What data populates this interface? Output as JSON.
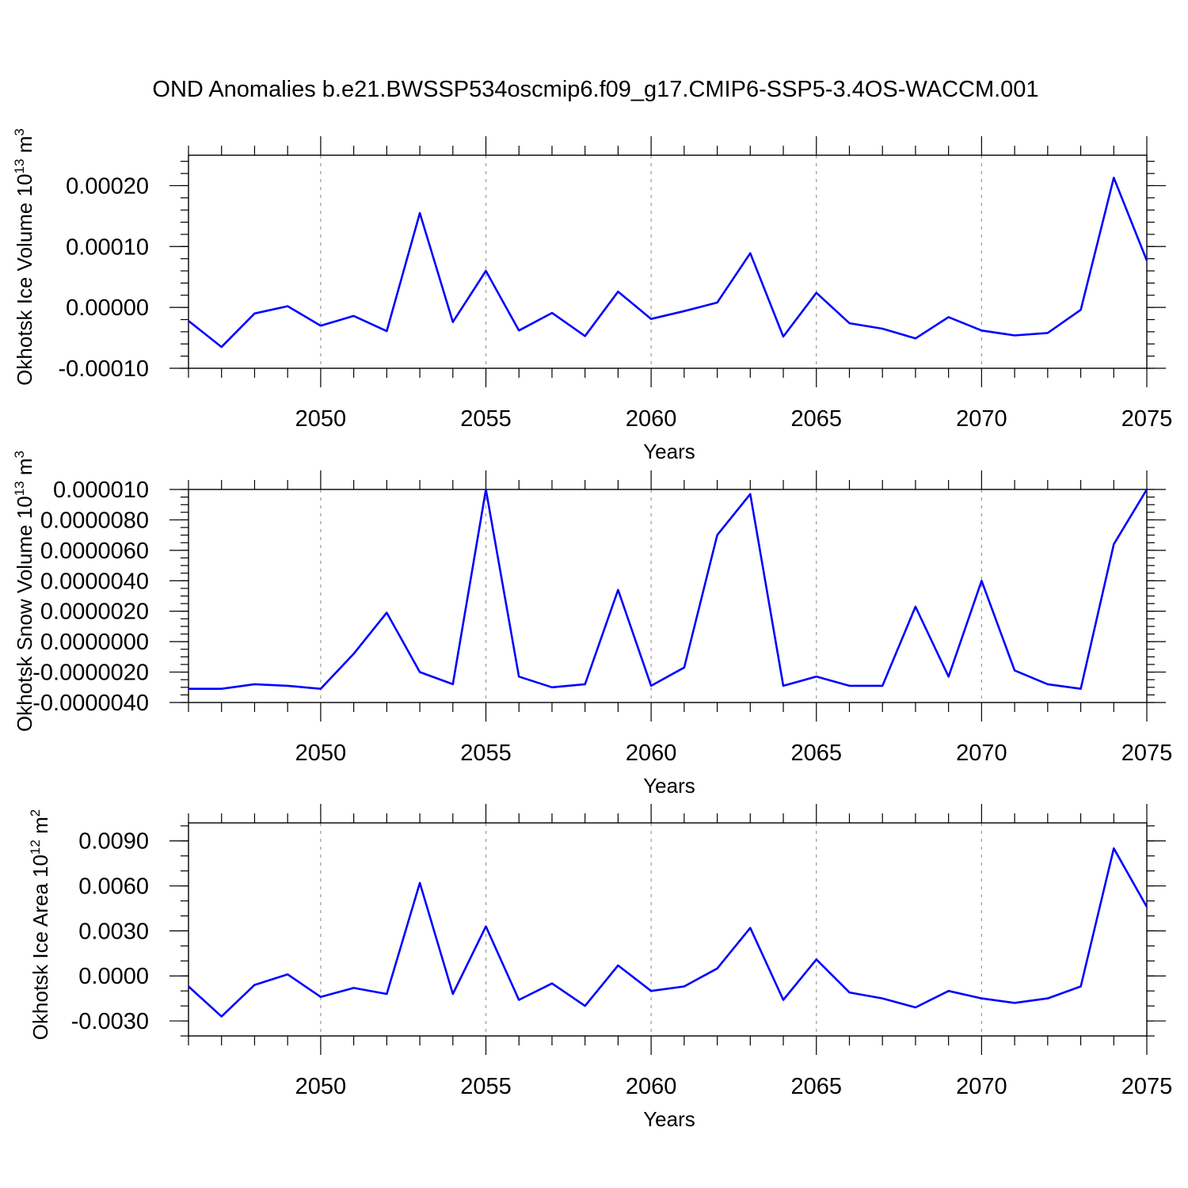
{
  "title": "OND Anomalies b.e21.BWSSP534oscmip6.f09_g17.CMIP6-SSP5-3.4OS-WACCM.001",
  "chart_data": [
    {
      "type": "line",
      "ylabel": "Okhotsk Ice Volume 10",
      "ylabel_sup": "13",
      "ylabel_unit": " m",
      "ylabel_unit_sup": "3",
      "xlabel": "Years",
      "xlim": [
        2046,
        2075
      ],
      "ylim": [
        -0.0001,
        0.00025
      ],
      "yticks": [
        -0.0001,
        0.0,
        0.0001,
        0.0002
      ],
      "ytick_labels": [
        "-0.00010",
        "0.00000",
        "0.00010",
        "0.00020"
      ],
      "yminor_step": 2e-05,
      "xticks": [
        2050,
        2055,
        2060,
        2065,
        2070,
        2075
      ],
      "xtick_labels": [
        "2050",
        "2055",
        "2060",
        "2065",
        "2070",
        "2075"
      ],
      "grid": "vertical-dashed",
      "color": "#0000ff",
      "x": [
        2046,
        2047,
        2048,
        2049,
        2050,
        2051,
        2052,
        2053,
        2054,
        2055,
        2056,
        2057,
        2058,
        2059,
        2060,
        2061,
        2062,
        2063,
        2064,
        2065,
        2066,
        2067,
        2068,
        2069,
        2070,
        2071,
        2072,
        2073,
        2074,
        2075
      ],
      "values": [
        -2.2e-05,
        -6.5e-05,
        -1e-05,
        2e-06,
        -3e-05,
        -1.4e-05,
        -3.9e-05,
        0.000155,
        -2.4e-05,
        6e-05,
        -3.8e-05,
        -9e-06,
        -4.7e-05,
        2.6e-05,
        -1.9e-05,
        -6e-06,
        8e-06,
        8.9e-05,
        -4.8e-05,
        2.4e-05,
        -2.6e-05,
        -3.5e-05,
        -5.1e-05,
        -1.6e-05,
        -3.8e-05,
        -4.6e-05,
        -4.2e-05,
        -4e-06,
        0.000213,
        7.7e-05
      ]
    },
    {
      "type": "line",
      "ylabel": "Okhotsk Snow Volume 10",
      "ylabel_sup": "13",
      "ylabel_unit": " m",
      "ylabel_unit_sup": "3",
      "xlabel": "Years",
      "xlim": [
        2046,
        2075
      ],
      "ylim": [
        -4e-06,
        1e-05
      ],
      "yticks": [
        -4e-06,
        -2e-06,
        0.0,
        2e-06,
        4e-06,
        6e-06,
        8e-06,
        1e-05
      ],
      "ytick_labels": [
        "-0.0000040",
        "-0.0000020",
        "0.0000000",
        "0.0000020",
        "0.0000040",
        "0.0000060",
        "0.0000080",
        "0.000010"
      ],
      "yminor_step": 5e-07,
      "xticks": [
        2050,
        2055,
        2060,
        2065,
        2070,
        2075
      ],
      "xtick_labels": [
        "2050",
        "2055",
        "2060",
        "2065",
        "2070",
        "2075"
      ],
      "grid": "vertical-dashed",
      "color": "#0000ff",
      "x": [
        2046,
        2047,
        2048,
        2049,
        2050,
        2051,
        2052,
        2053,
        2054,
        2055,
        2056,
        2057,
        2058,
        2059,
        2060,
        2061,
        2062,
        2063,
        2064,
        2065,
        2066,
        2067,
        2068,
        2069,
        2070,
        2071,
        2072,
        2073,
        2074,
        2075
      ],
      "values": [
        -3.1e-06,
        -3.1e-06,
        -2.8e-06,
        -2.9e-06,
        -3.1e-06,
        -8e-07,
        1.9e-06,
        -2e-06,
        -2.8e-06,
        1e-05,
        -2.3e-06,
        -3e-06,
        -2.8e-06,
        3.4e-06,
        -2.9e-06,
        -1.7e-06,
        7e-06,
        9.7e-06,
        -2.9e-06,
        -2.3e-06,
        -2.9e-06,
        -2.9e-06,
        2.3e-06,
        -2.3e-06,
        4e-06,
        -1.9e-06,
        -2.8e-06,
        -3.1e-06,
        6.4e-06,
        1e-05
      ]
    },
    {
      "type": "line",
      "ylabel": "Okhotsk Ice Area 10",
      "ylabel_sup": "12",
      "ylabel_unit": " m",
      "ylabel_unit_sup": "2",
      "xlabel": "Years",
      "xlim": [
        2046,
        2075
      ],
      "ylim": [
        -0.004,
        0.0102
      ],
      "yticks": [
        -0.003,
        0.0,
        0.003,
        0.006,
        0.009
      ],
      "ytick_labels": [
        "-0.0030",
        "0.0000",
        "0.0030",
        "0.0060",
        "0.0090"
      ],
      "yminor_step": 0.001,
      "xticks": [
        2050,
        2055,
        2060,
        2065,
        2070,
        2075
      ],
      "xtick_labels": [
        "2050",
        "2055",
        "2060",
        "2065",
        "2070",
        "2075"
      ],
      "grid": "vertical-dashed",
      "color": "#0000ff",
      "x": [
        2046,
        2047,
        2048,
        2049,
        2050,
        2051,
        2052,
        2053,
        2054,
        2055,
        2056,
        2057,
        2058,
        2059,
        2060,
        2061,
        2062,
        2063,
        2064,
        2065,
        2066,
        2067,
        2068,
        2069,
        2070,
        2071,
        2072,
        2073,
        2074,
        2075
      ],
      "values": [
        -0.0007,
        -0.0027,
        -0.0006,
        0.0001,
        -0.0014,
        -0.0008,
        -0.0012,
        0.0062,
        -0.0012,
        0.0033,
        -0.0016,
        -0.0005,
        -0.002,
        0.0007,
        -0.001,
        -0.0007,
        0.0005,
        0.0032,
        -0.0016,
        0.0011,
        -0.0011,
        -0.0015,
        -0.0021,
        -0.001,
        -0.0015,
        -0.0018,
        -0.0015,
        -0.0007,
        0.0085,
        0.0046
      ]
    }
  ]
}
